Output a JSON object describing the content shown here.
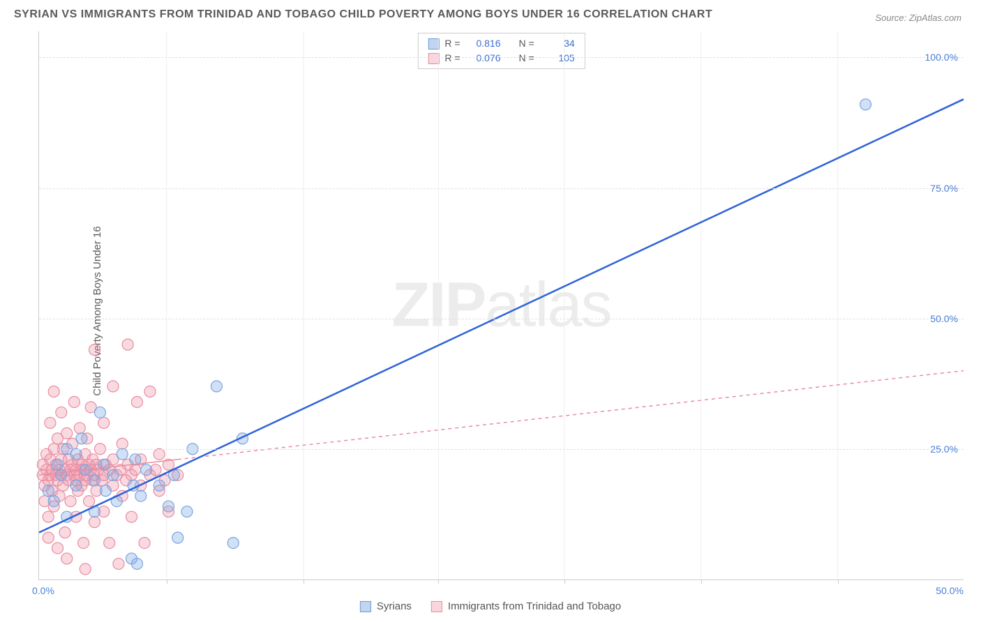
{
  "title": "SYRIAN VS IMMIGRANTS FROM TRINIDAD AND TOBAGO CHILD POVERTY AMONG BOYS UNDER 16 CORRELATION CHART",
  "source": "Source: ZipAtlas.com",
  "watermark": {
    "bold": "ZIP",
    "rest": "atlas"
  },
  "y_label": "Child Poverty Among Boys Under 16",
  "chart": {
    "type": "scatter",
    "xlim": [
      0,
      50
    ],
    "ylim": [
      0,
      105
    ],
    "x_ticks_major": [
      0,
      50
    ],
    "x_ticks_minor": [
      6.9,
      14.3,
      21.6,
      28.4,
      35.8,
      43.2
    ],
    "y_ticks": [
      25,
      50,
      75,
      100
    ],
    "x_tick_labels": {
      "min": "0.0%",
      "max": "50.0%"
    },
    "y_tick_labels": [
      "25.0%",
      "50.0%",
      "75.0%",
      "100.0%"
    ],
    "background_color": "#ffffff",
    "grid_h_color": "#e0e0e0",
    "grid_v_color": "#eeeeee"
  },
  "series": {
    "syrians": {
      "label": "Syrians",
      "color_fill": "rgba(120,165,225,0.35)",
      "color_stroke": "#7aa5e1",
      "marker_r": 8,
      "stats": {
        "R": "0.816",
        "N": "34"
      },
      "regression": {
        "x1": 0,
        "y1": 9,
        "x2": 50,
        "y2": 92,
        "stroke": "#2e62d9",
        "width": 2.5,
        "dash": ""
      },
      "points": [
        [
          0.5,
          17
        ],
        [
          0.8,
          15
        ],
        [
          1.0,
          22
        ],
        [
          1.2,
          20
        ],
        [
          1.5,
          25
        ],
        [
          1.5,
          12
        ],
        [
          2.0,
          18
        ],
        [
          2.0,
          24
        ],
        [
          2.3,
          27
        ],
        [
          2.5,
          21
        ],
        [
          3.0,
          13
        ],
        [
          3.0,
          19
        ],
        [
          3.3,
          32
        ],
        [
          3.5,
          22
        ],
        [
          3.6,
          17
        ],
        [
          4.0,
          20
        ],
        [
          4.2,
          15
        ],
        [
          4.5,
          24
        ],
        [
          5.0,
          4
        ],
        [
          5.1,
          18
        ],
        [
          5.2,
          23
        ],
        [
          5.3,
          3
        ],
        [
          5.5,
          16
        ],
        [
          5.8,
          21
        ],
        [
          6.5,
          18
        ],
        [
          7.0,
          14
        ],
        [
          7.3,
          20
        ],
        [
          7.5,
          8
        ],
        [
          8.0,
          13
        ],
        [
          8.3,
          25
        ],
        [
          9.6,
          37
        ],
        [
          10.5,
          7
        ],
        [
          11.0,
          27
        ],
        [
          44.7,
          91
        ]
      ]
    },
    "trinidad": {
      "label": "Immigrants from Trinidad and Tobago",
      "color_fill": "rgba(240,150,170,0.35)",
      "color_stroke": "#e88ca0",
      "marker_r": 8,
      "stats": {
        "R": "0.076",
        "N": "105"
      },
      "regression": {
        "x1": 0,
        "y1": 20,
        "x2": 50,
        "y2": 40,
        "stroke": "#e88ca0",
        "width": 1.5,
        "dash": "5,5",
        "solid_until_x": 7.5
      },
      "points": [
        [
          0.2,
          20
        ],
        [
          0.2,
          22
        ],
        [
          0.3,
          15
        ],
        [
          0.3,
          18
        ],
        [
          0.4,
          21
        ],
        [
          0.4,
          24
        ],
        [
          0.5,
          19
        ],
        [
          0.5,
          8
        ],
        [
          0.5,
          12
        ],
        [
          0.6,
          20
        ],
        [
          0.6,
          23
        ],
        [
          0.6,
          30
        ],
        [
          0.7,
          17
        ],
        [
          0.7,
          21
        ],
        [
          0.8,
          25
        ],
        [
          0.8,
          14
        ],
        [
          0.8,
          36
        ],
        [
          0.9,
          20
        ],
        [
          0.9,
          22
        ],
        [
          1.0,
          19
        ],
        [
          1.0,
          6
        ],
        [
          1.0,
          27
        ],
        [
          1.1,
          21
        ],
        [
          1.1,
          16
        ],
        [
          1.2,
          23
        ],
        [
          1.2,
          20
        ],
        [
          1.2,
          32
        ],
        [
          1.3,
          18
        ],
        [
          1.3,
          25
        ],
        [
          1.4,
          21
        ],
        [
          1.4,
          9
        ],
        [
          1.5,
          20
        ],
        [
          1.5,
          28
        ],
        [
          1.5,
          4
        ],
        [
          1.6,
          19
        ],
        [
          1.6,
          23
        ],
        [
          1.7,
          21
        ],
        [
          1.7,
          15
        ],
        [
          1.8,
          22
        ],
        [
          1.8,
          26
        ],
        [
          1.9,
          20
        ],
        [
          1.9,
          34
        ],
        [
          2.0,
          19
        ],
        [
          2.0,
          21
        ],
        [
          2.0,
          12
        ],
        [
          2.1,
          23
        ],
        [
          2.1,
          17
        ],
        [
          2.2,
          20
        ],
        [
          2.2,
          29
        ],
        [
          2.3,
          18
        ],
        [
          2.3,
          22
        ],
        [
          2.4,
          21
        ],
        [
          2.4,
          7
        ],
        [
          2.5,
          24
        ],
        [
          2.5,
          19
        ],
        [
          2.5,
          2
        ],
        [
          2.6,
          20
        ],
        [
          2.6,
          27
        ],
        [
          2.7,
          22
        ],
        [
          2.7,
          15
        ],
        [
          2.8,
          21
        ],
        [
          2.8,
          33
        ],
        [
          2.9,
          19
        ],
        [
          2.9,
          23
        ],
        [
          3.0,
          20
        ],
        [
          3.0,
          11
        ],
        [
          3.0,
          44
        ],
        [
          3.1,
          22
        ],
        [
          3.1,
          17
        ],
        [
          3.2,
          21
        ],
        [
          3.3,
          25
        ],
        [
          3.4,
          19
        ],
        [
          3.5,
          20
        ],
        [
          3.5,
          30
        ],
        [
          3.5,
          13
        ],
        [
          3.6,
          22
        ],
        [
          3.8,
          21
        ],
        [
          3.8,
          7
        ],
        [
          4.0,
          18
        ],
        [
          4.0,
          23
        ],
        [
          4.0,
          37
        ],
        [
          4.2,
          20
        ],
        [
          4.3,
          3
        ],
        [
          4.4,
          21
        ],
        [
          4.5,
          26
        ],
        [
          4.5,
          16
        ],
        [
          4.7,
          19
        ],
        [
          4.8,
          22
        ],
        [
          4.8,
          45
        ],
        [
          5.0,
          20
        ],
        [
          5.0,
          12
        ],
        [
          5.2,
          21
        ],
        [
          5.3,
          34
        ],
        [
          5.5,
          18
        ],
        [
          5.5,
          23
        ],
        [
          5.7,
          7
        ],
        [
          6.0,
          20
        ],
        [
          6.0,
          36
        ],
        [
          6.3,
          21
        ],
        [
          6.5,
          17
        ],
        [
          6.5,
          24
        ],
        [
          6.8,
          19
        ],
        [
          7.0,
          22
        ],
        [
          7.0,
          13
        ],
        [
          7.5,
          20
        ]
      ]
    }
  },
  "legend_top": {
    "r_label": "R =",
    "n_label": "N ="
  },
  "colors": {
    "title": "#5a5a5a",
    "axis_value": "#4a7fd6",
    "stat_value": "#3b6fcf"
  }
}
